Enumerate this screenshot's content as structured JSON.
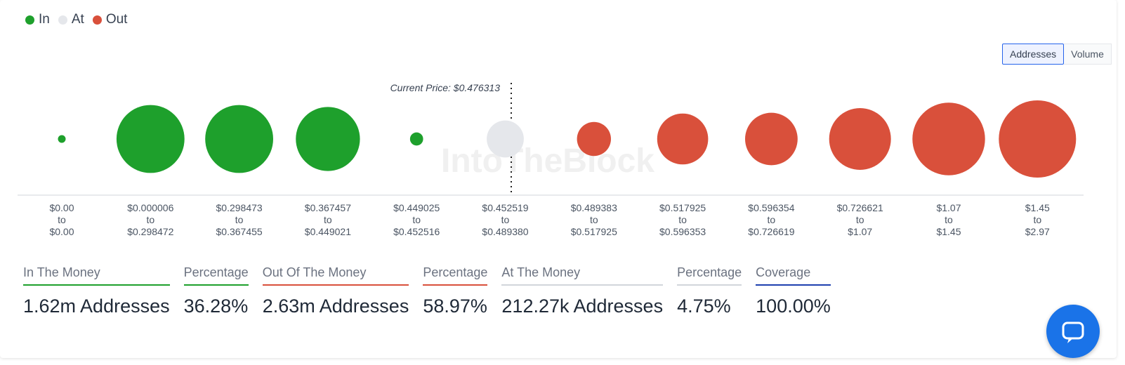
{
  "legend": [
    {
      "label": "In",
      "color": "#1ea02c"
    },
    {
      "label": "At",
      "color": "#e5e7eb"
    },
    {
      "label": "Out",
      "color": "#d9503b"
    }
  ],
  "toggle": {
    "addresses_label": "Addresses",
    "volume_label": "Volume",
    "selected": "Addresses"
  },
  "watermark": "IntoTheBlock",
  "chart_data": {
    "type": "bubble",
    "current_price_label": "Current Price: $0.476313",
    "current_price": 0.476313,
    "buckets": [
      {
        "from": "$0.00",
        "to": "$0.00",
        "status": "in",
        "relative_size": 0.1
      },
      {
        "from": "$0.000006",
        "to": "$0.298472",
        "status": "in",
        "relative_size": 0.88
      },
      {
        "from": "$0.298473",
        "to": "$0.367455",
        "status": "in",
        "relative_size": 0.88
      },
      {
        "from": "$0.367457",
        "to": "$0.449021",
        "status": "in",
        "relative_size": 0.83
      },
      {
        "from": "$0.449025",
        "to": "$0.452516",
        "status": "in",
        "relative_size": 0.17
      },
      {
        "from": "$0.452519",
        "to": "$0.489380",
        "status": "at",
        "relative_size": 0.48
      },
      {
        "from": "$0.489383",
        "to": "$0.517925",
        "status": "out",
        "relative_size": 0.44
      },
      {
        "from": "$0.517925",
        "to": "$0.596353",
        "status": "out",
        "relative_size": 0.66
      },
      {
        "from": "$0.596354",
        "to": "$0.726619",
        "status": "out",
        "relative_size": 0.68
      },
      {
        "from": "$0.726621",
        "to": "$1.07",
        "status": "out",
        "relative_size": 0.8
      },
      {
        "from": "$1.07",
        "to": "$1.45",
        "status": "out",
        "relative_size": 0.94
      },
      {
        "from": "$1.45",
        "to": "$2.97",
        "status": "out",
        "relative_size": 1.0
      }
    ]
  },
  "stats": [
    {
      "label": "In The Money",
      "value": "1.62m Addresses",
      "color": "#1ea02c"
    },
    {
      "label": "Percentage",
      "value": "36.28%",
      "color": "#1ea02c"
    },
    {
      "label": "Out Of The Money",
      "value": "2.63m Addresses",
      "color": "#d9503b"
    },
    {
      "label": "Percentage",
      "value": "58.97%",
      "color": "#d9503b"
    },
    {
      "label": "At The Money",
      "value": "212.27k Addresses",
      "color": "#d1d5db"
    },
    {
      "label": "Percentage",
      "value": "4.75%",
      "color": "#d1d5db"
    },
    {
      "label": "Coverage",
      "value": "100.00%",
      "color": "#1e40af"
    }
  ]
}
